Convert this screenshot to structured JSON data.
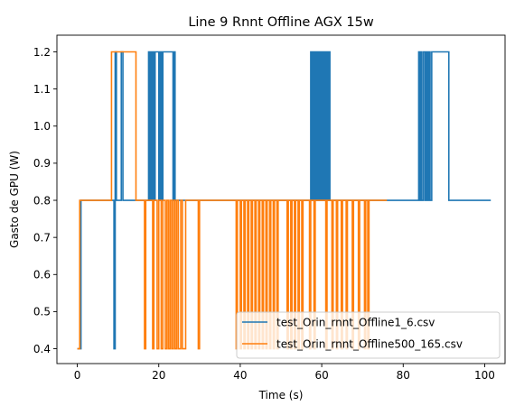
{
  "chart_data": {
    "type": "line",
    "title": "Line 9 Rnnt Offline AGX 15w",
    "xlabel": "Time (s)",
    "ylabel": "Gasto de GPU (W)",
    "xlim": [
      -5,
      105
    ],
    "ylim": [
      0.36,
      1.245
    ],
    "xticks": [
      0,
      20,
      40,
      60,
      80,
      100
    ],
    "xtick_labels": [
      "0",
      "20",
      "40",
      "60",
      "80",
      "100"
    ],
    "yticks": [
      0.4,
      0.5,
      0.6,
      0.7,
      0.8,
      0.9,
      1.0,
      1.1,
      1.2
    ],
    "ytick_labels": [
      "0.4",
      "0.5",
      "0.6",
      "0.7",
      "0.8",
      "0.9",
      "1.0",
      "1.1",
      "1.2"
    ],
    "grid": false,
    "legend_position": "bottom-right",
    "step": true,
    "series": [
      {
        "name": "test_Orin_rnnt_Offline1_6.csv",
        "color": "#1f77b4",
        "x": [
          0,
          0.9,
          8.8,
          9.0,
          9.3,
          9.6,
          10.8,
          11.2,
          11.6,
          17.5,
          17.7,
          17.9,
          18.1,
          18.3,
          18.5,
          18.7,
          18.9,
          19.1,
          19.3,
          20.0,
          20.2,
          20.4,
          20.6,
          20.8,
          21.0,
          22.0,
          23.5,
          23.7,
          24.0,
          57.3,
          57.5,
          57.7,
          57.9,
          58.1,
          58.3,
          58.5,
          58.7,
          58.9,
          59.1,
          59.3,
          59.5,
          59.7,
          59.9,
          60.1,
          60.3,
          60.5,
          60.7,
          60.9,
          61.1,
          61.3,
          61.5,
          61.7,
          62.0,
          83.8,
          84.0,
          84.3,
          84.6,
          85.0,
          85.4,
          85.7,
          86.0,
          86.3,
          86.6,
          87.0,
          88.0,
          89.0,
          91.2,
          101.5
        ],
        "y": [
          0.4,
          0.8,
          0.8,
          0.4,
          1.2,
          0.8,
          1.2,
          0.8,
          0.8,
          1.2,
          0.8,
          1.2,
          0.8,
          1.2,
          0.8,
          1.2,
          0.8,
          1.2,
          1.2,
          0.8,
          1.2,
          0.8,
          1.2,
          0.8,
          1.2,
          1.2,
          0.8,
          1.2,
          0.8,
          1.2,
          0.8,
          1.2,
          0.8,
          1.2,
          0.8,
          1.2,
          0.8,
          1.2,
          0.8,
          1.2,
          0.8,
          1.2,
          0.8,
          1.2,
          0.8,
          1.2,
          0.8,
          1.2,
          0.8,
          1.2,
          0.8,
          1.2,
          0.8,
          1.2,
          0.8,
          1.2,
          0.8,
          1.2,
          0.8,
          1.2,
          0.8,
          1.2,
          0.8,
          1.2,
          1.2,
          1.2,
          0.8,
          0.8
        ]
      },
      {
        "name": "test_Orin_rnnt_Offline500_165.csv",
        "color": "#ff7f0e",
        "x": [
          0,
          0.6,
          8.4,
          14.4,
          16.5,
          16.8,
          17.5,
          18.5,
          18.8,
          19.6,
          20.0,
          20.6,
          21.0,
          21.6,
          22.0,
          22.4,
          22.8,
          23.2,
          23.6,
          24.0,
          24.4,
          24.8,
          25.4,
          25.8,
          26.6,
          27.0,
          29.7,
          30.0,
          39.0,
          39.3,
          40.0,
          40.3,
          40.9,
          41.2,
          41.8,
          42.1,
          42.7,
          43.0,
          43.6,
          43.9,
          44.5,
          44.8,
          45.4,
          45.7,
          46.3,
          46.6,
          47.2,
          47.5,
          48.1,
          48.4,
          49.0,
          49.3,
          50.0,
          51.5,
          51.8,
          52.4,
          52.7,
          53.3,
          53.6,
          54.2,
          54.5,
          55.1,
          55.4,
          56.0,
          57.0,
          57.3,
          58.1,
          58.4,
          60.0,
          61.0,
          61.3,
          62.5,
          62.8,
          63.6,
          63.9,
          64.8,
          65.1,
          66.0,
          66.3,
          67.5,
          67.8,
          69.0,
          69.3,
          70.5,
          70.8,
          71.3,
          71.6,
          76.0
        ],
        "y": [
          0.4,
          0.8,
          1.2,
          0.8,
          0.4,
          0.8,
          0.8,
          0.4,
          0.8,
          0.4,
          0.8,
          0.4,
          0.8,
          0.4,
          0.8,
          0.4,
          0.8,
          0.4,
          0.8,
          0.4,
          0.8,
          0.4,
          0.8,
          0.4,
          0.8,
          0.8,
          0.4,
          0.8,
          0.4,
          0.8,
          0.4,
          0.8,
          0.4,
          0.8,
          0.4,
          0.8,
          0.4,
          0.8,
          0.4,
          0.8,
          0.4,
          0.8,
          0.4,
          0.8,
          0.4,
          0.8,
          0.4,
          0.8,
          0.4,
          0.8,
          0.4,
          0.8,
          0.8,
          0.4,
          0.8,
          0.4,
          0.8,
          0.4,
          0.8,
          0.4,
          0.8,
          0.4,
          0.8,
          0.8,
          0.4,
          0.8,
          0.4,
          0.8,
          0.8,
          0.4,
          0.8,
          0.4,
          0.8,
          0.4,
          0.8,
          0.4,
          0.8,
          0.4,
          0.8,
          0.4,
          0.8,
          0.4,
          0.8,
          0.4,
          0.8,
          0.4,
          0.8,
          0.8
        ]
      }
    ]
  }
}
